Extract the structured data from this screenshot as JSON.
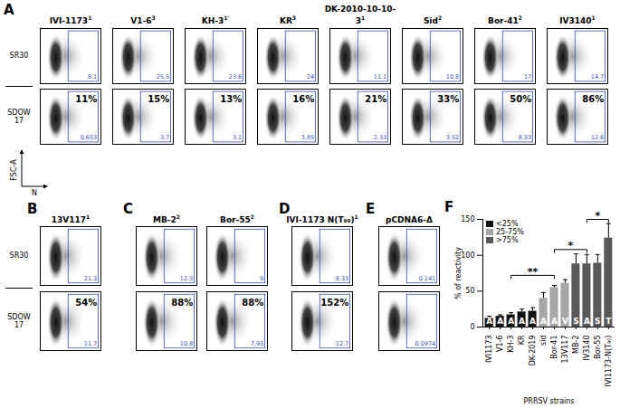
{
  "panels": [
    {
      "letter": "A",
      "plots": [
        {
          "strain": "IVI-1173",
          "superscript": "1",
          "SR30": 8.1,
          "SDOW17": 0.653,
          "reactivity": "11%"
        },
        {
          "strain": "V1-6",
          "superscript": "3",
          "SR30": 25.5,
          "SDOW17": 3.7,
          "reactivity": "15%"
        },
        {
          "strain": "KH-3",
          "superscript": "1'",
          "SR30": 23.6,
          "SDOW17": 3.1,
          "reactivity": "13%"
        },
        {
          "strain": "KR",
          "superscript": "3",
          "SR30": 24,
          "SDOW17": 3.85,
          "reactivity": "16%"
        },
        {
          "strain": "DK-2010-10-10-3",
          "superscript": "1",
          "SR30": 11.1,
          "SDOW17": 2.33,
          "reactivity": "21%"
        },
        {
          "strain": "Sid",
          "superscript": "2",
          "SR30": 10.8,
          "SDOW17": 3.52,
          "reactivity": "33%"
        },
        {
          "strain": "Bor-41",
          "superscript": "2",
          "SR30": 17,
          "SDOW17": 8.53,
          "reactivity": "50%"
        },
        {
          "strain": "IV3140",
          "superscript": "1",
          "SR30": 14.7,
          "SDOW17": 12.6,
          "reactivity": "86%"
        }
      ]
    },
    {
      "letter": "B",
      "plots": [
        {
          "strain": "13V117",
          "superscript": "1",
          "SR30": 21.3,
          "SDOW17": 11.7,
          "reactivity": "54%"
        }
      ]
    },
    {
      "letter": "C",
      "plots": [
        {
          "strain": "MB-2",
          "superscript": "2",
          "SR30": 12.3,
          "SDOW17": 10.8,
          "reactivity": "88%"
        },
        {
          "strain": "Bor-55",
          "superscript": "2",
          "SR30": 9,
          "SDOW17": 7.93,
          "reactivity": "88%"
        }
      ]
    },
    {
      "letter": "D",
      "plots": [
        {
          "strain": "IVI-1173 N(T₉₀)",
          "superscript": "1",
          "SR30": 8.33,
          "SDOW17": 12.7,
          "reactivity": "152%"
        }
      ]
    },
    {
      "letter": "E",
      "plots": [
        {
          "strain": "pCDNA6-Δ",
          "SR30": 0.141,
          "SDOW17": 0.0974
        }
      ]
    }
  ],
  "row_labels": [
    "SR30",
    "SDOW 17"
  ],
  "y_axis": "FSC-A",
  "x_axis": "N",
  "chart_data": {
    "letter": "F",
    "type": "bar",
    "x_label": "PRRSV strains",
    "y_label": "% of reactivity",
    "categories": [
      "IVI1173",
      "V1-6",
      "KH-3",
      "KR",
      "DK-2019",
      "sid",
      "Bor-41",
      "13V117",
      "MB-2",
      "IV3140",
      "Bor-55",
      "IVI1173-N(T₉₀)"
    ],
    "series": [
      {
        "name": "<25%",
        "color": "#111111",
        "values": [
          12,
          15,
          17,
          21,
          22,
          null,
          null,
          null,
          null,
          null,
          null,
          null
        ],
        "errors": [
          3,
          2,
          3,
          4,
          5,
          null,
          null,
          null,
          null,
          null,
          null,
          null
        ]
      },
      {
        "name": "25-75%",
        "color": "#a6a6a6",
        "values": [
          null,
          null,
          null,
          null,
          null,
          40,
          55,
          61,
          null,
          null,
          null,
          null
        ],
        "errors": [
          null,
          null,
          null,
          null,
          null,
          8,
          3,
          5,
          null,
          null,
          null,
          null
        ]
      },
      {
        "name": ">75%",
        "color": "#595959",
        "values": [
          null,
          null,
          null,
          null,
          null,
          null,
          null,
          null,
          88,
          88,
          89,
          124
        ],
        "errors": [
          null,
          null,
          null,
          null,
          null,
          null,
          null,
          null,
          14,
          13,
          12,
          20
        ]
      }
    ],
    "bar_labels": [
      "A",
      "A",
      "A",
      "A",
      "A",
      "A",
      "A",
      "V",
      "S",
      "A",
      "S",
      "T"
    ],
    "significance": [
      {
        "label": "**",
        "left": [
          "IVI1173",
          "V1-6",
          "KH-3",
          "KR",
          "DK-2019"
        ],
        "right": [
          "sid",
          "Bor-41",
          "13V117"
        ]
      },
      {
        "label": "*",
        "left": [
          "sid",
          "Bor-41",
          "13V117"
        ],
        "right": [
          "MB-2",
          "IV3140",
          "Bor-55"
        ]
      },
      {
        "label": "*",
        "left": [
          "MB-2",
          "IV3140",
          "Bor-55"
        ],
        "right": [
          "IVI1173-N(T₉₀)"
        ]
      }
    ],
    "ylim": [
      0,
      150
    ],
    "yticks": [
      0,
      50,
      100,
      150
    ],
    "grid": false,
    "legend": "top-left"
  }
}
